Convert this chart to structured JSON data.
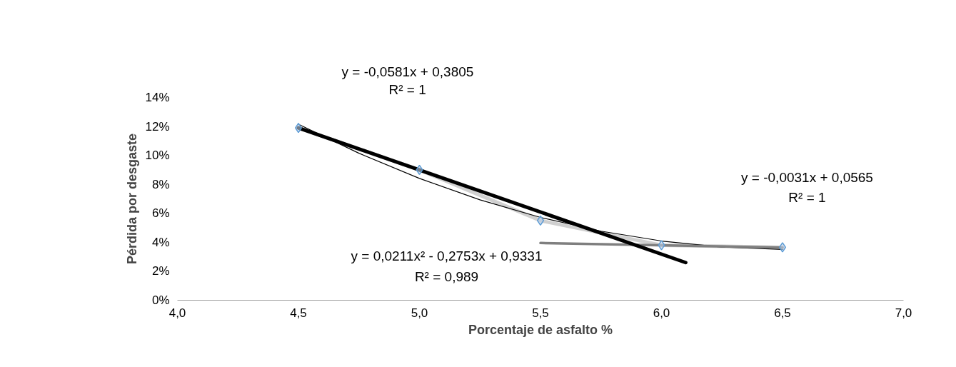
{
  "chart_data": {
    "type": "scatter",
    "xlabel": "Porcentaje de asfalto %",
    "ylabel": "Pérdida por desgaste",
    "xlim": [
      4.0,
      7.0
    ],
    "xticks": [
      {
        "value": 4.0,
        "label": "4,0"
      },
      {
        "value": 4.5,
        "label": "4,5"
      },
      {
        "value": 5.0,
        "label": "5,0"
      },
      {
        "value": 5.5,
        "label": "5,5"
      },
      {
        "value": 6.0,
        "label": "6,0"
      },
      {
        "value": 6.5,
        "label": "6,5"
      },
      {
        "value": 7.0,
        "label": "7,0"
      }
    ],
    "ylim": [
      0,
      14
    ],
    "yticks": [
      {
        "value": 0,
        "label": "0%"
      },
      {
        "value": 2,
        "label": "2%"
      },
      {
        "value": 4,
        "label": "4%"
      },
      {
        "value": 6,
        "label": "6%"
      },
      {
        "value": 8,
        "label": "8%"
      },
      {
        "value": 10,
        "label": "10%"
      },
      {
        "value": 12,
        "label": "12%"
      },
      {
        "value": 14,
        "label": "14%"
      }
    ],
    "grid": false,
    "series": [
      {
        "type": "line",
        "color": "#d0d0d0",
        "x": [
          4.5,
          5.0,
          5.5,
          6.0,
          6.5
        ],
        "values": [
          11.9,
          9.0,
          5.5,
          3.8,
          3.65
        ]
      },
      {
        "type": "line",
        "color": "#000000",
        "x": [
          4.5,
          4.75,
          5.0,
          5.25,
          5.5,
          5.75,
          6.0,
          6.25,
          6.5
        ],
        "values": [
          12.15,
          10.15,
          8.41,
          6.93,
          5.72,
          4.77,
          4.09,
          3.67,
          3.51
        ]
      },
      {
        "type": "line",
        "color": "#7f7f7f",
        "x": [
          5.5,
          6.5
        ],
        "values": [
          3.95,
          3.64
        ]
      },
      {
        "type": "line",
        "color": "#000000",
        "x": [
          4.5,
          6.1
        ],
        "values": [
          11.9,
          2.6
        ]
      },
      {
        "marker": "diamond",
        "color": "#5b9bd5",
        "x": [
          4.5,
          5.0,
          5.5,
          6.0,
          6.5
        ],
        "values": [
          11.9,
          9.0,
          5.5,
          3.8,
          3.65
        ]
      }
    ],
    "annotations": [
      "y = -0,0581x + 0,3805",
      "R² = 1",
      "y = -0,0031x + 0,0565",
      "R² = 1",
      "y = 0,0211x² - 0,2753x + 0,9331",
      "R² = 0,989"
    ]
  }
}
